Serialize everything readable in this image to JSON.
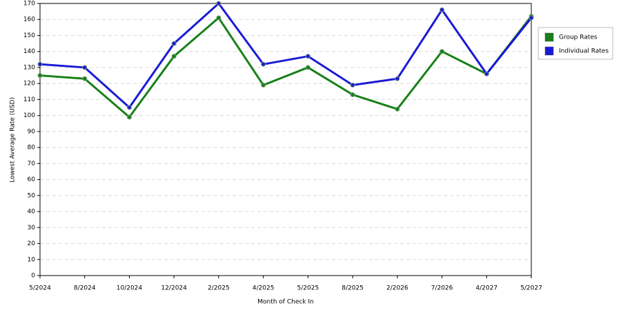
{
  "chart_data": {
    "type": "line",
    "x_label": "Month of Check In",
    "y_label": "Lowest Average Rate (USD)",
    "categories": [
      "5/2024",
      "8/2024",
      "10/2024",
      "12/2024",
      "2/2025",
      "4/2025",
      "5/2025",
      "8/2025",
      "2/2026",
      "7/2026",
      "4/2027",
      "5/2027"
    ],
    "series": [
      {
        "name": "Group Rates",
        "color": "#178017",
        "values": [
          125,
          123,
          99,
          137,
          161,
          119,
          130,
          113,
          104,
          140,
          126,
          162
        ]
      },
      {
        "name": "Individual Rates",
        "color": "#1a1ad6",
        "values": [
          132,
          130,
          105,
          145,
          170,
          132,
          137,
          119,
          123,
          166,
          126,
          161
        ]
      }
    ],
    "ylim": [
      0,
      170
    ],
    "yticks": [
      0,
      10,
      20,
      30,
      40,
      50,
      60,
      70,
      80,
      90,
      100,
      110,
      120,
      130,
      140,
      150,
      160,
      170
    ],
    "grid": true,
    "legend": "right"
  }
}
